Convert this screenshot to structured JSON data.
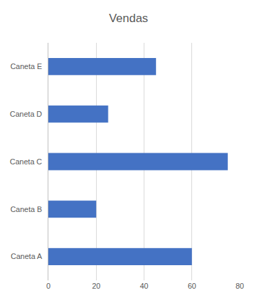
{
  "chart_data": {
    "type": "bar",
    "title": "Vendas",
    "orientation": "horizontal",
    "categories": [
      "Caneta A",
      "Caneta B",
      "Caneta C",
      "Caneta D",
      "Caneta E"
    ],
    "values": [
      60,
      20,
      75,
      25,
      45
    ],
    "color": "#4472c4",
    "xlim": [
      0,
      80
    ],
    "xticks": [
      0,
      20,
      40,
      60,
      80
    ],
    "grid": true
  }
}
